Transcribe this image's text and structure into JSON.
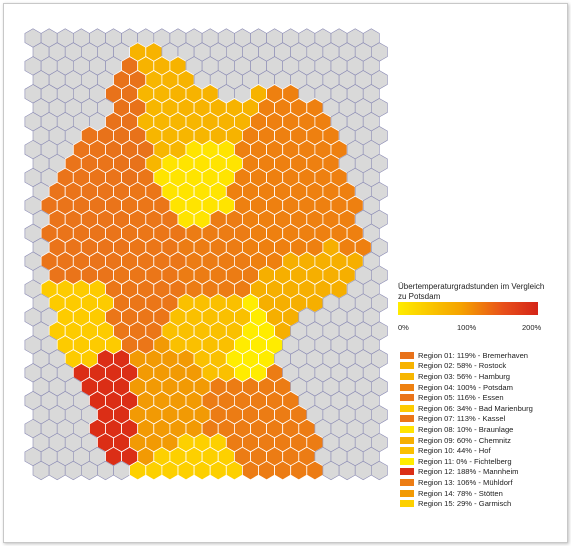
{
  "chart_data": {
    "type": "heatmap",
    "title": "Übertemperaturgradstunden im Vergleich zu Potsdam",
    "colorbar": {
      "min": 0,
      "max": 200,
      "unit": "%",
      "ticks": [
        "0%",
        "100%",
        "200%"
      ],
      "colors": [
        "#ffec00",
        "#f5a200",
        "#e8501a",
        "#d42418"
      ]
    },
    "regions": [
      {
        "label": "Region 01: 119% - Bremerhaven",
        "value": 119,
        "color": "#e8721a"
      },
      {
        "label": "Region 02: 58% - Rostock",
        "value": 58,
        "color": "#f7b300"
      },
      {
        "label": "Region 03: 56% - Hamburg",
        "value": 56,
        "color": "#f7b600"
      },
      {
        "label": "Region 04: 100% - Potsdam",
        "value": 100,
        "color": "#ee8010"
      },
      {
        "label": "Region 05: 116% - Essen",
        "value": 116,
        "color": "#ea741a"
      },
      {
        "label": "Region 06: 34% - Bad Marienburg",
        "value": 34,
        "color": "#fdcb00"
      },
      {
        "label": "Region 07: 113% - Kassel",
        "value": 113,
        "color": "#eb7618"
      },
      {
        "label": "Region 08: 10% - Braunlage",
        "value": 10,
        "color": "#ffe400"
      },
      {
        "label": "Region 09: 60% - Chemnitz",
        "value": 60,
        "color": "#f6af00"
      },
      {
        "label": "Region 10: 44% - Hof",
        "value": 44,
        "color": "#fac000"
      },
      {
        "label": "Region 11: 0% - Fichtelberg",
        "value": 0,
        "color": "#ffec00"
      },
      {
        "label": "Region 12: 188% - Mannheim",
        "value": 188,
        "color": "#db2e16"
      },
      {
        "label": "Region 13: 106% - Mühldorf",
        "value": 106,
        "color": "#ec7c14"
      },
      {
        "label": "Region 14: 78% - Stötten",
        "value": 78,
        "color": "#f29a04"
      },
      {
        "label": "Region 15: 29% - Garmisch",
        "value": 29,
        "color": "#fdd000"
      }
    ],
    "colors": {
      "empty_hex": "#d9d9d9",
      "empty_stroke": "#8a8ab4",
      "hex_stroke": "#ffffff"
    }
  }
}
